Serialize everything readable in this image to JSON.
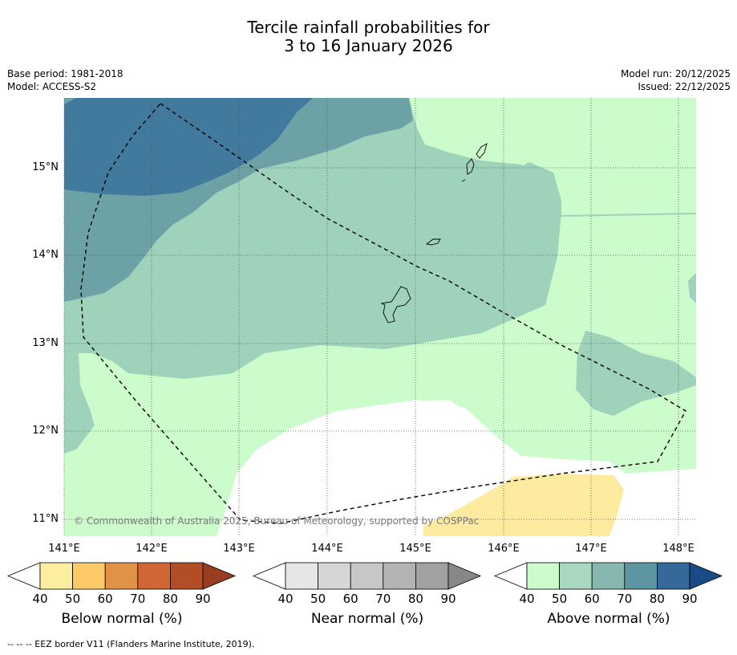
{
  "title": {
    "line1": "Tercile rainfall probabilities for",
    "line2": "3 to 16 January 2026"
  },
  "meta": {
    "base_period": "Base period: 1981-2018",
    "model": "Model: ACCESS-S2",
    "model_run": "Model run: 20/12/2025",
    "issued": "Issued: 22/12/2025"
  },
  "map": {
    "lat_labels": [
      "15°N",
      "14°N",
      "13°N",
      "12°N",
      "11°N"
    ],
    "lon_labels": [
      "141°E",
      "142°E",
      "143°E",
      "144°E",
      "145°E",
      "146°E",
      "147°E",
      "148°E"
    ],
    "copyright": "© Commonwealth of Australia 2025, Bureau of Meteorology, supported by COSPPac",
    "colors": {
      "above_50": "#ccfbcc",
      "above_60": "#9ed2bb",
      "above_70": "#6ca2a6",
      "above_80": "#417a9c",
      "below_50": "#feeb9f"
    }
  },
  "colorbars": {
    "ticks": [
      "40",
      "50",
      "60",
      "70",
      "80",
      "90"
    ],
    "below": {
      "title": "Below normal (%)",
      "colors": [
        "#ffffff",
        "#feeea0",
        "#fccb68",
        "#e09347",
        "#cf6633",
        "#b34d26",
        "#983d21"
      ]
    },
    "near": {
      "title": "Near normal (%)",
      "colors": [
        "#ffffff",
        "#e6e6e6",
        "#d6d6d6",
        "#c7c7c7",
        "#b3b3b3",
        "#a1a1a1",
        "#878787"
      ]
    },
    "above": {
      "title": "Above normal (%)",
      "colors": [
        "#ffffff",
        "#ccfbcc",
        "#a8d8bf",
        "#86b8b0",
        "#5e95a2",
        "#37689a",
        "#1a4a86"
      ]
    }
  },
  "footnote": "--  --  -- EEZ border V11 (Flanders Marine Institute, 2019)."
}
